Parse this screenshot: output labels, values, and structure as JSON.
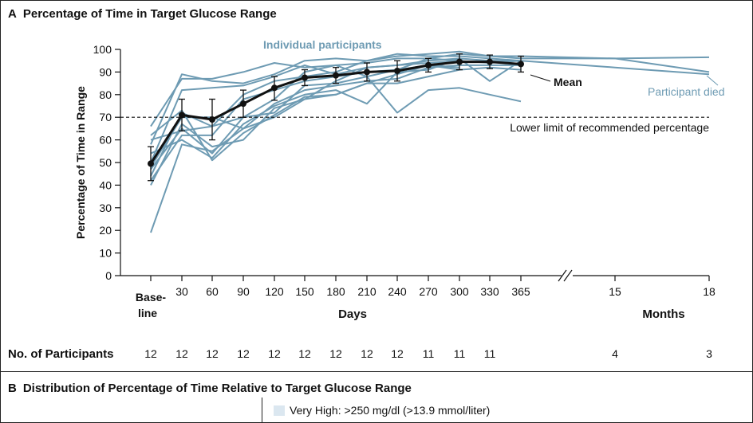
{
  "panel_a": {
    "letter": "A",
    "title": "Percentage of Time in Target Glucose Range",
    "participants_label": "No. of Participants",
    "participants": [
      "12",
      "12",
      "12",
      "12",
      "12",
      "12",
      "12",
      "12",
      "12",
      "11",
      "11",
      "11",
      "4",
      "3"
    ]
  },
  "panel_b": {
    "letter": "B",
    "title": "Distribution of Percentage of Time Relative to Target Glucose Range",
    "legend": [
      {
        "label": "Very High: >250 mg/dl (>13.9 mmol/liter)",
        "color": "#dbe7f0"
      }
    ]
  },
  "chart_data": {
    "type": "line",
    "title": "Percentage of Time in Target Glucose Range",
    "ylabel": "Percentage of Time in Range",
    "xlabel_days": "Days",
    "xlabel_months": "Months",
    "ylim": [
      0,
      100
    ],
    "yticks": [
      0,
      10,
      20,
      30,
      40,
      50,
      60,
      70,
      80,
      90,
      100
    ],
    "x_ticks": [
      {
        "label": "Base-",
        "label2": "line"
      },
      {
        "label": "30"
      },
      {
        "label": "60"
      },
      {
        "label": "90"
      },
      {
        "label": "120"
      },
      {
        "label": "150"
      },
      {
        "label": "180"
      },
      {
        "label": "210"
      },
      {
        "label": "240"
      },
      {
        "label": "270"
      },
      {
        "label": "300"
      },
      {
        "label": "330"
      },
      {
        "label": "365"
      },
      {
        "label": "15"
      },
      {
        "label": "18"
      }
    ],
    "annotations": {
      "individual": "Individual participants",
      "mean": "Mean",
      "died": "Participant died",
      "threshold": "Lower limit of recommended percentage"
    },
    "threshold": 70,
    "colors": {
      "individual": "#6e9bb3",
      "mean": "#111111",
      "threshold": "#111111"
    },
    "mean": {
      "name": "Mean",
      "values": [
        49.5,
        71,
        69,
        76,
        83,
        87.5,
        88.5,
        90,
        90.5,
        93,
        94.5,
        94.5,
        93.5
      ],
      "ci_low": [
        42,
        64,
        60,
        70,
        77.5,
        84,
        85,
        86,
        86,
        90,
        91,
        91.5,
        90
      ],
      "ci_high": [
        57,
        78,
        78,
        82,
        88,
        91,
        92,
        94,
        95,
        96,
        98,
        97.5,
        97
      ]
    },
    "individual_series": [
      {
        "name": "P1",
        "values": [
          66,
          87,
          87,
          90,
          94,
          92,
          93,
          94,
          96,
          96,
          98,
          97,
          96,
          96,
          90
        ]
      },
      {
        "name": "P2",
        "values": [
          58,
          89,
          86,
          85,
          89,
          95,
          96,
          95,
          97,
          98,
          99,
          97,
          97,
          96,
          96.5
        ]
      },
      {
        "name": "P3",
        "values": [
          50,
          82,
          83,
          84,
          88,
          93,
          89,
          92,
          93,
          95,
          96,
          95,
          95,
          92,
          89
        ]
      },
      {
        "name": "P4",
        "values": [
          44,
          72,
          66,
          80,
          86,
          88,
          90,
          95,
          98,
          97,
          97,
          96,
          95
        ]
      },
      {
        "name": "P5",
        "values": [
          42,
          62,
          62,
          78,
          82,
          86,
          88,
          90,
          91,
          96,
          95,
          94,
          95
        ]
      },
      {
        "name": "P6",
        "values": [
          48,
          70,
          70,
          65,
          76,
          82,
          84,
          86,
          87,
          92,
          93,
          93,
          93
        ]
      },
      {
        "name": "P7",
        "values": [
          60,
          64,
          66,
          70,
          72,
          84,
          85,
          88,
          72,
          82,
          83,
          80,
          77
        ]
      },
      {
        "name": "P8",
        "values": [
          54,
          60,
          52,
          67,
          75,
          80,
          82,
          76,
          90,
          91,
          96,
          86,
          95
        ]
      },
      {
        "name": "P9",
        "values": [
          62,
          73,
          51,
          63,
          71,
          79,
          80,
          85,
          85,
          88,
          91,
          92,
          91
        ]
      },
      {
        "name": "P10",
        "values": [
          47,
          65,
          54,
          70,
          78,
          90,
          93,
          88,
          91,
          93,
          92
        ]
      },
      {
        "name": "P11",
        "values": [
          19,
          58,
          55,
          65,
          70,
          78,
          86,
          92,
          93,
          94,
          95
        ]
      },
      {
        "name": "P12",
        "values": [
          40,
          67,
          57,
          60,
          74,
          78,
          80,
          85,
          89,
          93,
          91
        ]
      }
    ]
  }
}
